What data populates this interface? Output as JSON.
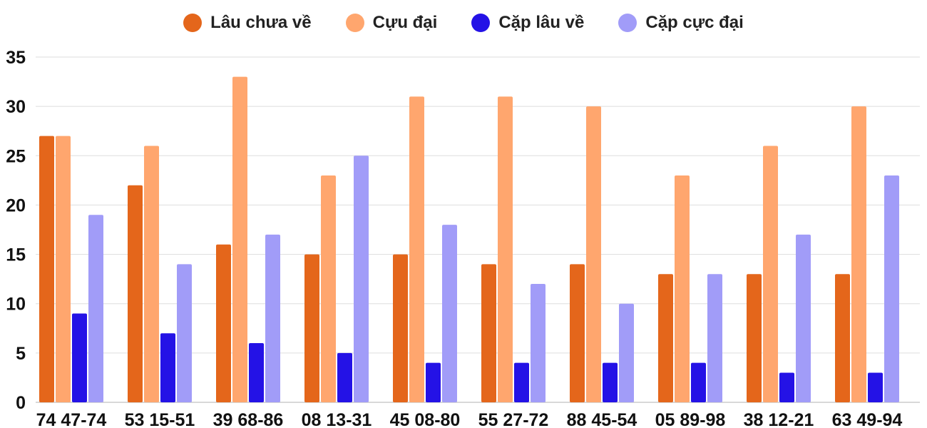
{
  "chart_data": {
    "type": "bar",
    "categories": [
      "74 47-74",
      "53 15-51",
      "39 68-86",
      "08 13-31",
      "45 08-80",
      "55 27-72",
      "88 45-54",
      "05 89-98",
      "38 12-21",
      "63 49-94"
    ],
    "series": [
      {
        "name": "Lâu chưa về",
        "color": "#e4661b",
        "values": [
          27,
          22,
          16,
          15,
          15,
          14,
          14,
          13,
          13,
          13
        ]
      },
      {
        "name": "Cựu đại",
        "color": "#ffa66e",
        "values": [
          27,
          26,
          33,
          23,
          31,
          31,
          30,
          23,
          26,
          30
        ]
      },
      {
        "name": "Cặp lâu về",
        "color": "#2412e6",
        "values": [
          9,
          7,
          6,
          5,
          4,
          4,
          4,
          4,
          3,
          3
        ]
      },
      {
        "name": "Cặp cực đại",
        "color": "#a19cf8",
        "values": [
          19,
          14,
          17,
          25,
          18,
          12,
          10,
          13,
          17,
          23
        ]
      }
    ],
    "yticks": [
      "0",
      "5",
      "10",
      "15",
      "20",
      "25",
      "30",
      "35"
    ],
    "ylim": [
      0,
      35
    ],
    "grid": true,
    "legend_position": "top-center"
  }
}
